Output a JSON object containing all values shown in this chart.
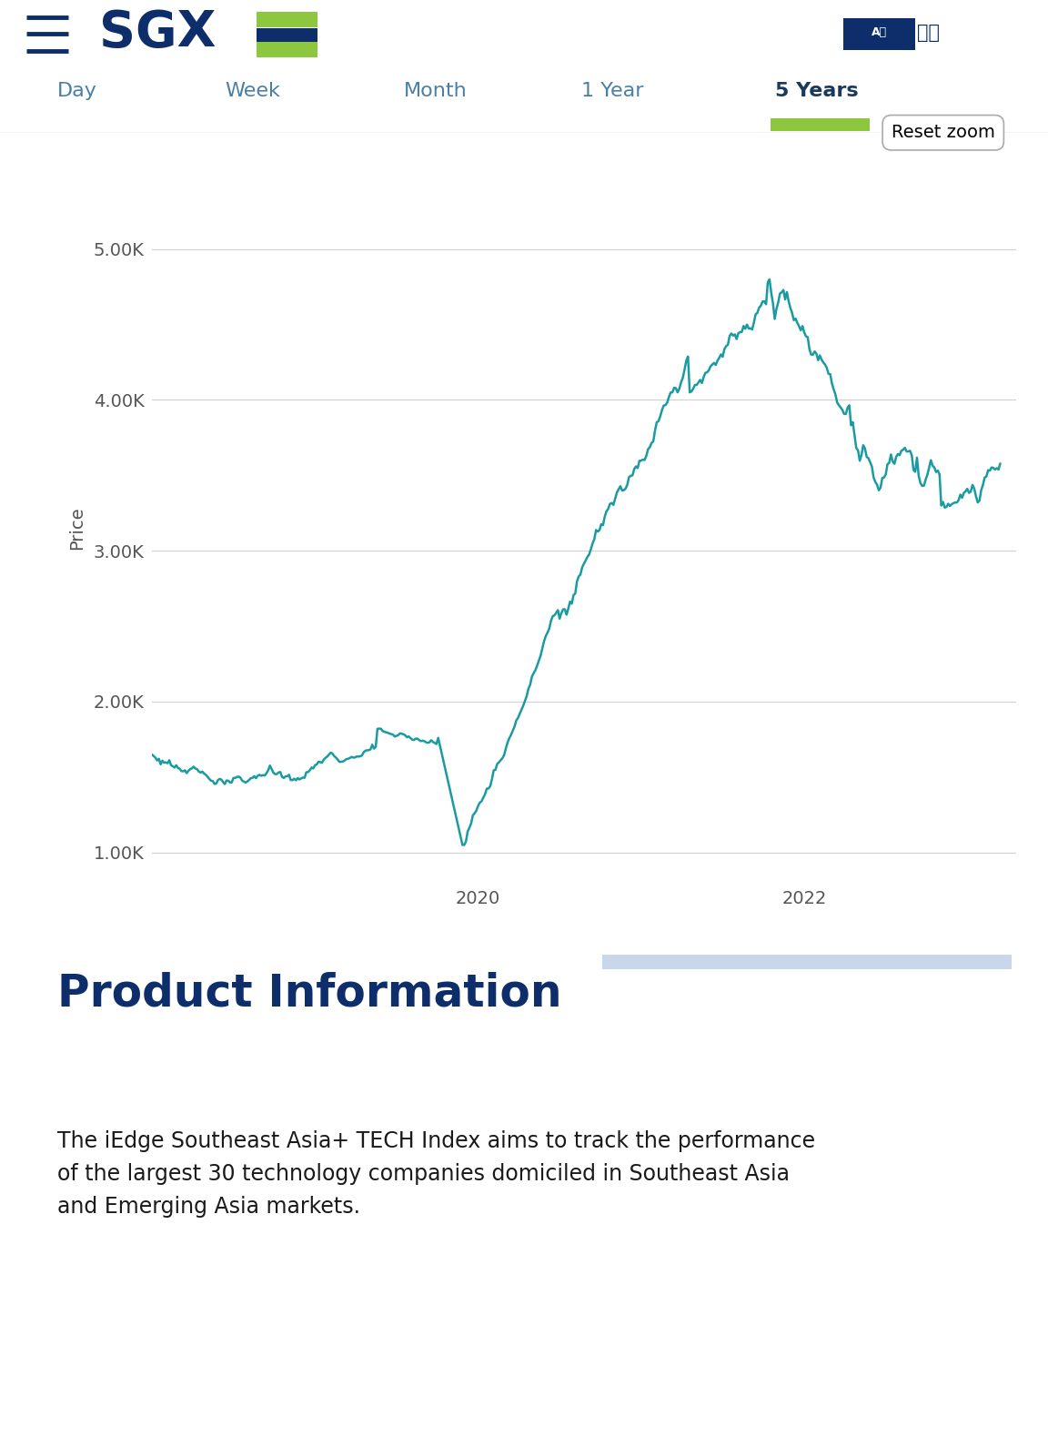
{
  "background_color": "#ffffff",
  "sgx_blue": "#0d2d6b",
  "sgx_green": "#8dc63f",
  "line_color": "#1a9ba1",
  "tab_text_color": "#4a7fa5",
  "tab_active_text_color": "#1a3a5c",
  "tick_label_color": "#555555",
  "grid_color": "#d0d0d0",
  "tabs": [
    "Day",
    "Week",
    "Month",
    "1 Year",
    "5 Years"
  ],
  "active_tab": "5 Years",
  "ylabel": "Price",
  "yticks": [
    1000,
    2000,
    3000,
    4000,
    5000
  ],
  "ytick_labels": [
    "1.00K",
    "2.00K",
    "3.00K",
    "4.00K",
    "5.00K"
  ],
  "xtick_labels": [
    "2020",
    "2022"
  ],
  "product_info_title": "Product Information",
  "product_info_text": "The iEdge Southeast Asia+ TECH Index aims to track the performance\nof the largest 30 technology companies domiciled in Southeast Asia\nand Emerging Asia markets.",
  "reset_zoom_text": "Reset zoom",
  "separator_color": "#333333",
  "divider_line_color": "#cccccc",
  "deco_line_color": "#c8d8ea"
}
